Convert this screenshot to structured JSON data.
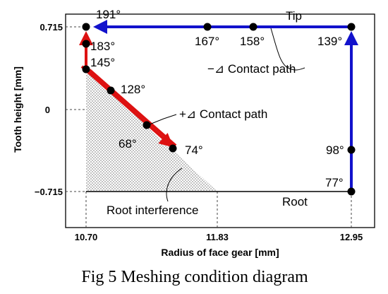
{
  "caption": "Fig 5 Meshing condition diagram",
  "axes": {
    "x_title": "Radius of face gear [mm]",
    "y_title": "Tooth height [mm]",
    "x_ticks": [
      "10.70",
      "11.83",
      "12.95"
    ],
    "y_ticks": [
      "0.715",
      "0",
      "−0.715"
    ]
  },
  "labels": {
    "tip": "Tip",
    "root": "Root",
    "neg_path": "−⊿ Contact path",
    "pos_path": "+⊿ Contact path",
    "root_interference": "Root interference"
  },
  "angles": {
    "a191": "191°",
    "a183": "183°",
    "a145": "145°",
    "a128": "128°",
    "a68": "68°",
    "a74": "74°",
    "a167": "167°",
    "a158": "158°",
    "a139": "139°",
    "a98": "98°",
    "a77": "77°"
  },
  "colors": {
    "blue_path": "#1212cc",
    "red_path": "#dd1111",
    "point": "#000000",
    "interference_fill": "#c8c8c8"
  }
}
